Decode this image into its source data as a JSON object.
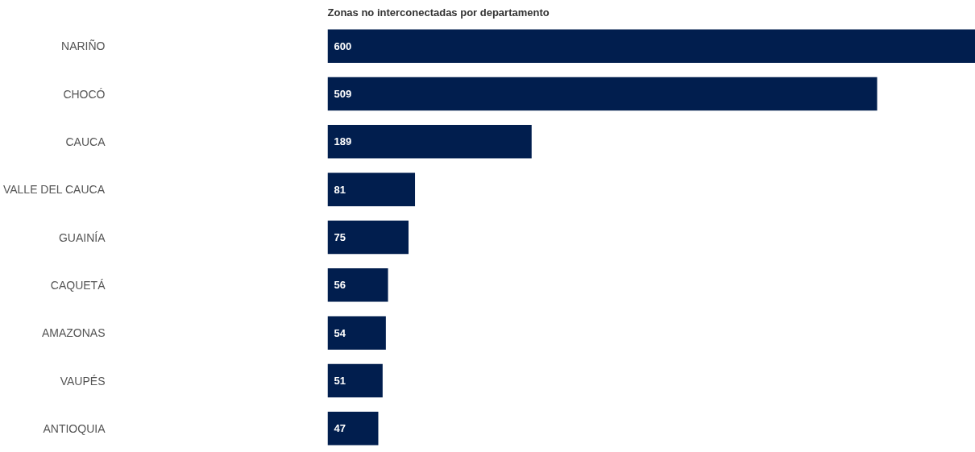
{
  "chart_data": {
    "type": "bar",
    "orientation": "horizontal",
    "title": "Zonas no interconectadas por departamento",
    "categories": [
      "NARIÑO",
      "CHOCÓ",
      "CAUCA",
      "VALLE DEL CAUCA",
      "GUAINÍA",
      "CAQUETÁ",
      "AMAZONAS",
      "VAUPÉS",
      "ANTIOQUIA"
    ],
    "values": [
      600,
      509,
      189,
      81,
      75,
      56,
      54,
      51,
      47
    ],
    "color": "#011e4e",
    "xlim": [
      0,
      600
    ],
    "data_labels": true,
    "tick_labels": "y",
    "grid": false
  }
}
